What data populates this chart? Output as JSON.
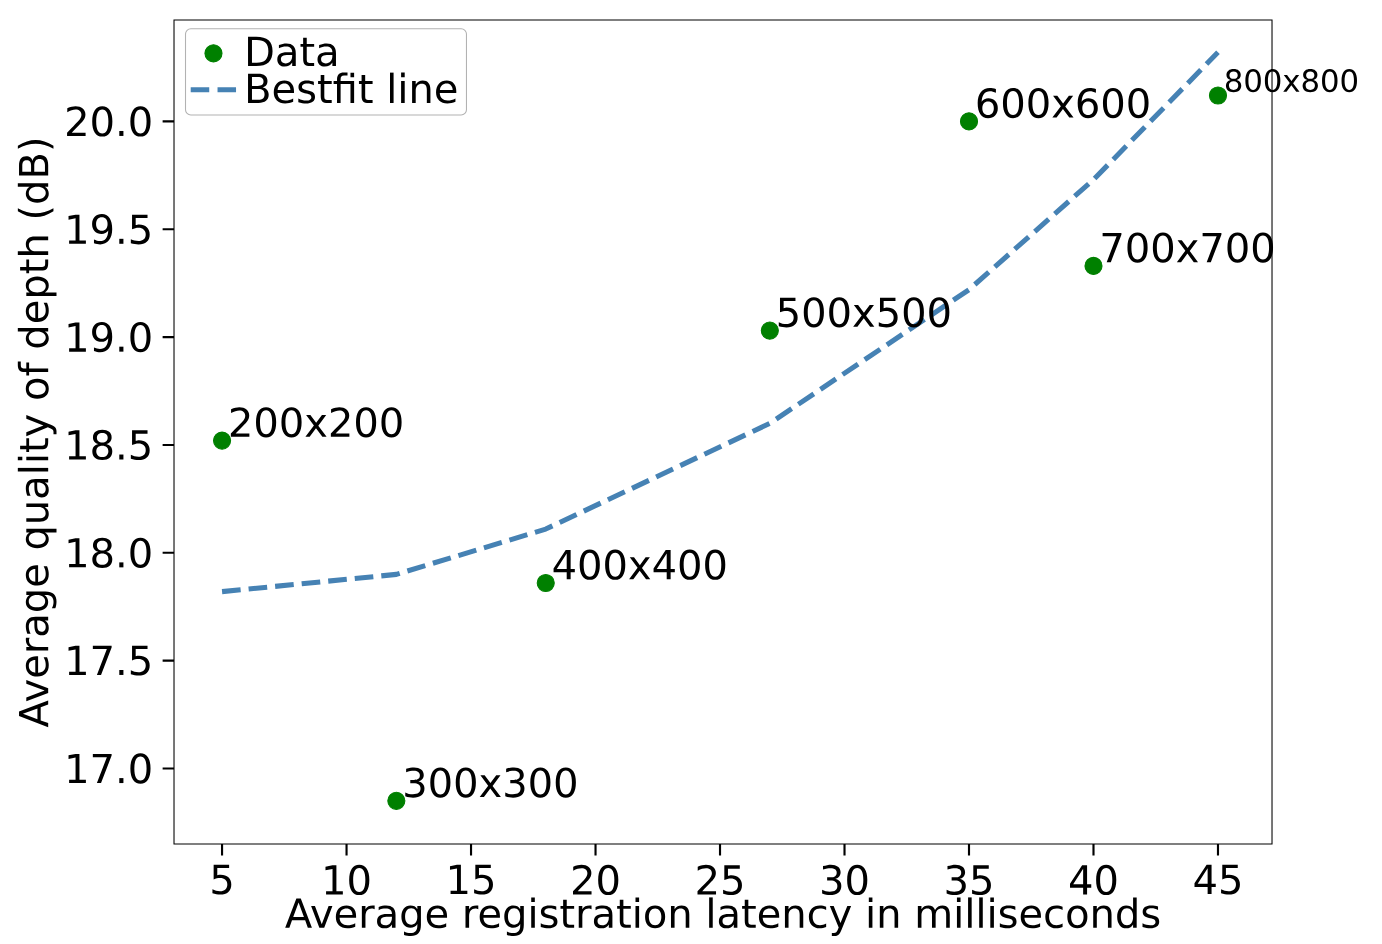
{
  "chart_data": {
    "type": "scatter",
    "xlabel": "Average registration latency in milliseconds",
    "ylabel": "Average quality of depth (dB)",
    "series": [
      {
        "name": "Data",
        "color": "#008000",
        "marker": "circle",
        "x": [
          5,
          12,
          18,
          27,
          35,
          40,
          45
        ],
        "values": [
          18.52,
          16.85,
          17.86,
          19.03,
          20.0,
          19.33,
          20.12
        ]
      },
      {
        "name": "Bestfit line",
        "type": "line",
        "color": "#4682b4",
        "line_style": "dashed",
        "marker": "none",
        "x": [
          5,
          12,
          18,
          27,
          35,
          40,
          45
        ],
        "values": [
          17.82,
          17.9,
          18.11,
          18.6,
          19.22,
          19.73,
          20.32
        ]
      }
    ],
    "xlim": [
      3.07,
      47.17
    ],
    "ylim": [
      16.65,
      20.47
    ],
    "xticks": [
      5,
      10,
      15,
      20,
      25,
      30,
      35,
      40,
      45
    ],
    "yticks": [
      {
        "value": 17,
        "label": "17.0"
      },
      {
        "value": 17.5,
        "label": "17.5"
      },
      {
        "value": 18,
        "label": "18.0"
      },
      {
        "value": 18.5,
        "label": "18.5"
      },
      {
        "value": 19,
        "label": "19.0"
      },
      {
        "value": 19.5,
        "label": "19.5"
      },
      {
        "value": 20,
        "label": "20.0"
      }
    ],
    "legend": "top left",
    "grid": false,
    "annotations": [
      {
        "text": "200x200",
        "x": 5,
        "y": 18.52
      },
      {
        "text": "300x300",
        "x": 12,
        "y": 16.85
      },
      {
        "text": "400x400",
        "x": 18,
        "y": 17.86
      },
      {
        "text": "500x500",
        "x": 27,
        "y": 19.03
      },
      {
        "text": "600x600",
        "x": 35,
        "y": 20.0
      },
      {
        "text": "700x700",
        "x": 40,
        "y": 19.33
      },
      {
        "text": "800x800",
        "x": 45,
        "y": 20.12
      }
    ]
  }
}
